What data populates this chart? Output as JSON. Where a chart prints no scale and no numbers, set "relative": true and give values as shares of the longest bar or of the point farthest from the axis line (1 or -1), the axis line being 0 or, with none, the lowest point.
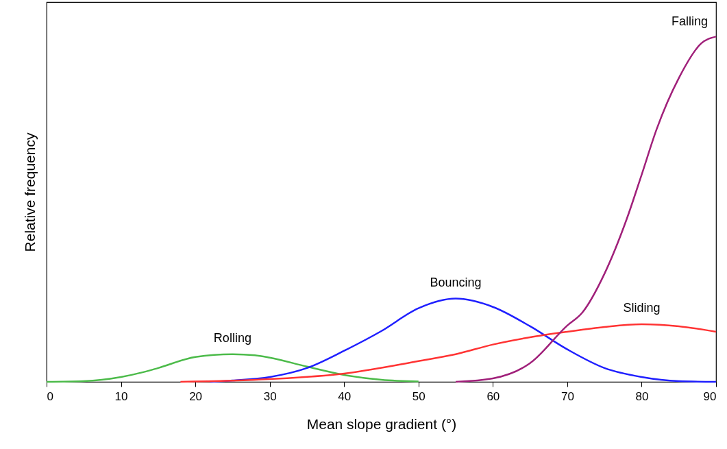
{
  "chart_data": {
    "type": "line",
    "relative": true,
    "xlabel": "Mean slope gradient (°)",
    "ylabel": "Relative frequency",
    "xlim": [
      0,
      90
    ],
    "xticks": [
      0,
      10,
      20,
      30,
      40,
      50,
      60,
      70,
      80,
      90
    ],
    "grid": false,
    "marker": "none",
    "line_style": "solid",
    "series": [
      {
        "name": "Rolling",
        "color": "#4cbb4a",
        "x": [
          0,
          5,
          10,
          13,
          15,
          20,
          25,
          28,
          30,
          35,
          40,
          45,
          50
        ],
        "values": [
          0,
          0.002,
          0.014,
          0.028,
          0.04,
          0.072,
          0.08,
          0.077,
          0.07,
          0.044,
          0.02,
          0.006,
          0.001
        ]
      },
      {
        "name": "Bouncing",
        "color": "#1f1fff",
        "x": [
          22,
          25,
          30,
          35,
          40,
          45,
          50,
          55,
          60,
          65,
          70,
          75,
          80,
          85,
          90
        ],
        "values": [
          0,
          0.004,
          0.014,
          0.04,
          0.09,
          0.147,
          0.213,
          0.241,
          0.217,
          0.161,
          0.094,
          0.04,
          0.014,
          0.002,
          0
        ]
      },
      {
        "name": "Sliding",
        "color": "#ff3333",
        "x": [
          18,
          30,
          40,
          50,
          55,
          60,
          65,
          70,
          75,
          80,
          85,
          90
        ],
        "values": [
          0,
          0.008,
          0.024,
          0.06,
          0.08,
          0.108,
          0.129,
          0.145,
          0.159,
          0.167,
          0.161,
          0.145
        ]
      },
      {
        "name": "Falling",
        "color": "#a0207a",
        "x": [
          55,
          60,
          65,
          70,
          72,
          75,
          78,
          80,
          82,
          85,
          88,
          90
        ],
        "values": [
          0,
          0.01,
          0.054,
          0.163,
          0.2,
          0.313,
          0.472,
          0.6,
          0.731,
          0.88,
          0.98,
          1
        ]
      }
    ]
  }
}
